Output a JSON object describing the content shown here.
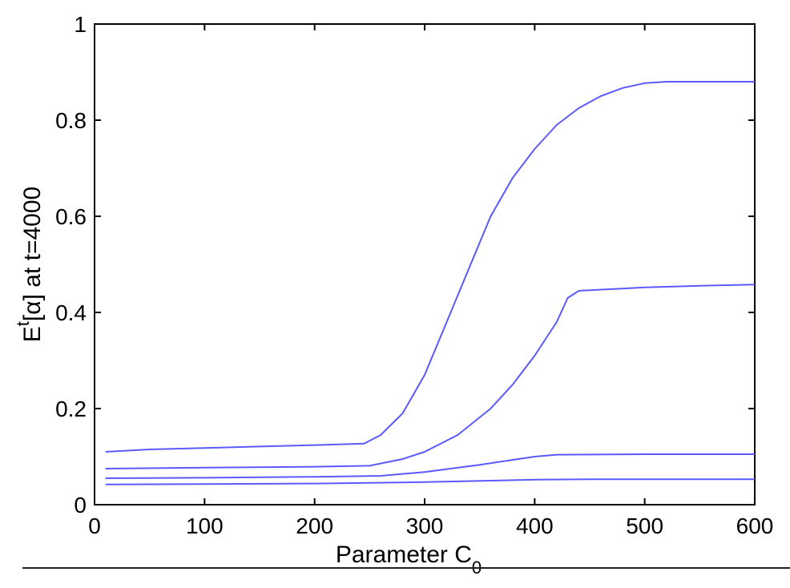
{
  "chart_data": {
    "type": "line",
    "title": "",
    "xlabel": "Parameter C",
    "xlabel_subscript": "0",
    "ylabel_prefix": "E",
    "ylabel_superscript": "t",
    "ylabel_suffix": "[α] at t=4000",
    "xlim": [
      0,
      600
    ],
    "ylim": [
      0,
      1
    ],
    "xticks": [
      "0",
      "100",
      "200",
      "300",
      "400",
      "500",
      "600"
    ],
    "yticks": [
      "0",
      "0.2",
      "0.4",
      "0.6",
      "0.8",
      "1"
    ],
    "grid": false,
    "line_color": "#5a5aff",
    "series": [
      {
        "x": [
          10,
          50,
          100,
          150,
          200,
          245,
          260,
          280,
          300,
          320,
          340,
          360,
          380,
          400,
          420,
          440,
          460,
          480,
          500,
          520,
          560,
          600
        ],
        "y": [
          0.11,
          0.115,
          0.118,
          0.121,
          0.124,
          0.127,
          0.145,
          0.19,
          0.27,
          0.38,
          0.49,
          0.6,
          0.68,
          0.74,
          0.79,
          0.825,
          0.85,
          0.867,
          0.877,
          0.88,
          0.88,
          0.88
        ]
      },
      {
        "x": [
          10,
          100,
          200,
          250,
          280,
          300,
          330,
          360,
          380,
          400,
          420,
          430,
          440,
          500,
          560,
          600
        ],
        "y": [
          0.075,
          0.077,
          0.079,
          0.081,
          0.095,
          0.11,
          0.145,
          0.2,
          0.25,
          0.31,
          0.38,
          0.43,
          0.445,
          0.452,
          0.456,
          0.458
        ]
      },
      {
        "x": [
          10,
          100,
          200,
          260,
          300,
          350,
          400,
          420,
          500,
          600
        ],
        "y": [
          0.055,
          0.056,
          0.058,
          0.06,
          0.068,
          0.083,
          0.1,
          0.104,
          0.105,
          0.105
        ]
      },
      {
        "x": [
          10,
          100,
          200,
          300,
          400,
          450,
          500,
          600
        ],
        "y": [
          0.042,
          0.043,
          0.044,
          0.047,
          0.052,
          0.053,
          0.053,
          0.053
        ]
      }
    ]
  }
}
